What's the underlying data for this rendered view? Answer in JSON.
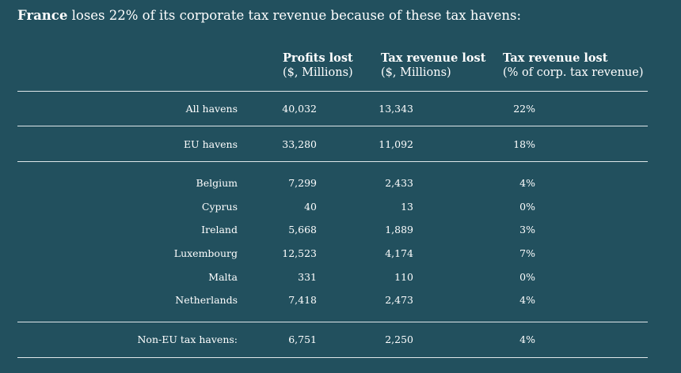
{
  "chart_data": {
    "type": "table",
    "title_bold": "France",
    "title_rest": " loses 22% of its corporate tax revenue because of these tax havens:",
    "columns": [
      {
        "l1": "Profits lost",
        "l2": "($, Millions)"
      },
      {
        "l1": "Tax revenue lost",
        "l2": "($, Millions)"
      },
      {
        "l1": "Tax revenue lost",
        "l2": "(% of corp. tax revenue)"
      }
    ],
    "rows": [
      {
        "label": "All havens",
        "profits": "40,032",
        "tax": "13,343",
        "pct": "22%"
      },
      {
        "label": "EU havens",
        "profits": "33,280",
        "tax": "11,092",
        "pct": "18%"
      },
      {
        "label": "Belgium",
        "profits": "7,299",
        "tax": "2,433",
        "pct": "4%"
      },
      {
        "label": "Cyprus",
        "profits": "40",
        "tax": "13",
        "pct": "0%"
      },
      {
        "label": "Ireland",
        "profits": "5,668",
        "tax": "1,889",
        "pct": "3%"
      },
      {
        "label": "Luxembourg",
        "profits": "12,523",
        "tax": "4,174",
        "pct": "7%"
      },
      {
        "label": "Malta",
        "profits": "331",
        "tax": "110",
        "pct": "0%"
      },
      {
        "label": "Netherlands",
        "profits": "7,418",
        "tax": "2,473",
        "pct": "4%"
      },
      {
        "label": "Non-EU tax havens:",
        "profits": "6,751",
        "tax": "2,250",
        "pct": "4%"
      }
    ]
  },
  "colors": {
    "background": "#22505e",
    "text": "#ffffff",
    "rule": "#dfe7ea"
  }
}
